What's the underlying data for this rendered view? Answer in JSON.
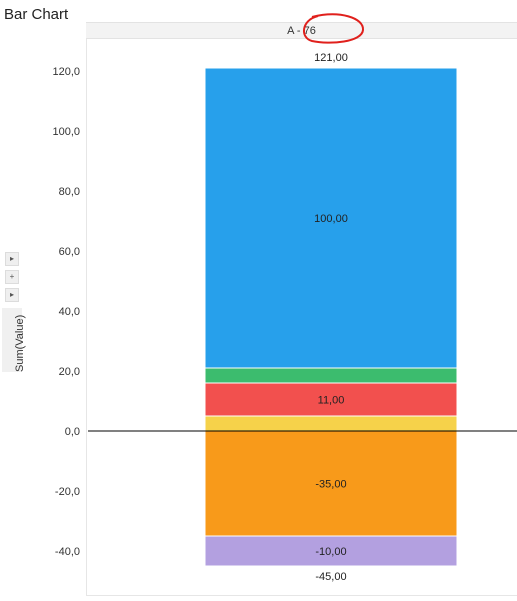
{
  "title": "Bar Chart",
  "header_label": "A - 76",
  "y_axis_title": "Sum(Value)",
  "controls": {
    "arrow_glyph": "▸",
    "plus_glyph": "+"
  },
  "chart_data": {
    "type": "bar",
    "stacked": true,
    "categories": [
      "A - 76"
    ],
    "ylim": [
      -45,
      121
    ],
    "y_ticks": [
      -40,
      -20,
      0,
      20,
      40,
      60,
      80,
      100,
      120
    ],
    "y_tick_labels": [
      "-40,0",
      "-20,0",
      "0,0",
      "20,0",
      "40,0",
      "60,0",
      "80,0",
      "100,0",
      "120,0"
    ],
    "series": [
      {
        "color": "#f6d24a",
        "values": [
          5
        ],
        "label": ""
      },
      {
        "color": "#f2504e",
        "values": [
          11
        ],
        "label": "11,00"
      },
      {
        "color": "#3cbc6e",
        "values": [
          5
        ],
        "label": ""
      },
      {
        "color": "#27a0eb",
        "values": [
          100
        ],
        "label": "100,00"
      },
      {
        "color": "#f89a1a",
        "values": [
          -35
        ],
        "label": "-35,00"
      },
      {
        "color": "#b3a0e0",
        "values": [
          -10
        ],
        "label": "-10,00"
      }
    ],
    "totals": {
      "positive": "121,00",
      "negative": "-45,00"
    },
    "grid": false,
    "legend": "none"
  }
}
